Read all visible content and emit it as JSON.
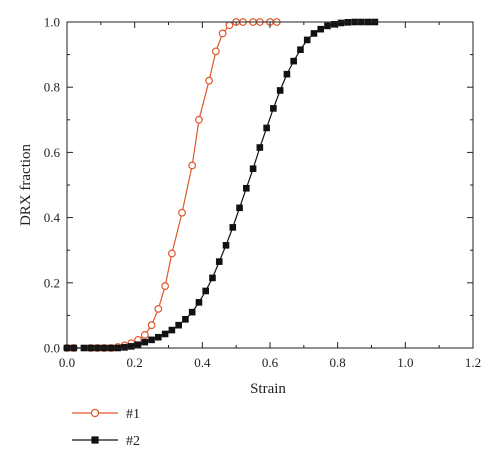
{
  "chart_data": {
    "type": "line",
    "xlabel": "Strain",
    "ylabel": "DRX fraction",
    "xlim": [
      0.0,
      1.2
    ],
    "ylim": [
      0.0,
      1.0
    ],
    "x_ticks": [
      "0.0",
      "0.2",
      "0.4",
      "0.6",
      "0.8",
      "1.0",
      "1.2"
    ],
    "y_ticks": [
      "0.0",
      "0.2",
      "0.4",
      "0.6",
      "0.8",
      "1.0"
    ],
    "grid": false,
    "legend_position": "bottom-left, below plot",
    "series": [
      {
        "name": "#1",
        "color": "#e0572c",
        "marker": "open-circle",
        "points": [
          [
            0.0,
            0.0
          ],
          [
            0.02,
            0.0
          ],
          [
            0.07,
            0.0
          ],
          [
            0.09,
            0.0
          ],
          [
            0.11,
            0.0
          ],
          [
            0.13,
            0.0
          ],
          [
            0.15,
            0.003
          ],
          [
            0.17,
            0.008
          ],
          [
            0.19,
            0.015
          ],
          [
            0.21,
            0.025
          ],
          [
            0.23,
            0.04
          ],
          [
            0.25,
            0.07
          ],
          [
            0.27,
            0.12
          ],
          [
            0.29,
            0.19
          ],
          [
            0.31,
            0.29
          ],
          [
            0.34,
            0.415
          ],
          [
            0.37,
            0.56
          ],
          [
            0.39,
            0.7
          ],
          [
            0.42,
            0.82
          ],
          [
            0.44,
            0.91
          ],
          [
            0.46,
            0.965
          ],
          [
            0.48,
            0.99
          ],
          [
            0.5,
            1.0
          ],
          [
            0.52,
            1.0
          ],
          [
            0.55,
            1.0
          ],
          [
            0.57,
            1.0
          ],
          [
            0.6,
            1.0
          ],
          [
            0.62,
            1.0
          ]
        ]
      },
      {
        "name": "#2",
        "color": "#111111",
        "marker": "filled-square",
        "points": [
          [
            0.0,
            0.0
          ],
          [
            0.02,
            0.0
          ],
          [
            0.05,
            0.0
          ],
          [
            0.07,
            0.0
          ],
          [
            0.09,
            0.0
          ],
          [
            0.11,
            0.0
          ],
          [
            0.13,
            0.0
          ],
          [
            0.15,
            0.0
          ],
          [
            0.17,
            0.002
          ],
          [
            0.19,
            0.005
          ],
          [
            0.21,
            0.01
          ],
          [
            0.23,
            0.018
          ],
          [
            0.25,
            0.025
          ],
          [
            0.27,
            0.033
          ],
          [
            0.29,
            0.043
          ],
          [
            0.31,
            0.055
          ],
          [
            0.33,
            0.07
          ],
          [
            0.35,
            0.088
          ],
          [
            0.37,
            0.11
          ],
          [
            0.39,
            0.14
          ],
          [
            0.41,
            0.175
          ],
          [
            0.43,
            0.215
          ],
          [
            0.45,
            0.265
          ],
          [
            0.47,
            0.315
          ],
          [
            0.49,
            0.37
          ],
          [
            0.51,
            0.43
          ],
          [
            0.53,
            0.49
          ],
          [
            0.55,
            0.55
          ],
          [
            0.57,
            0.615
          ],
          [
            0.59,
            0.675
          ],
          [
            0.61,
            0.735
          ],
          [
            0.63,
            0.79
          ],
          [
            0.65,
            0.84
          ],
          [
            0.67,
            0.88
          ],
          [
            0.69,
            0.915
          ],
          [
            0.71,
            0.945
          ],
          [
            0.73,
            0.965
          ],
          [
            0.75,
            0.978
          ],
          [
            0.77,
            0.988
          ],
          [
            0.79,
            0.993
          ],
          [
            0.81,
            0.997
          ],
          [
            0.83,
            0.999
          ],
          [
            0.85,
            1.0
          ],
          [
            0.87,
            1.0
          ],
          [
            0.89,
            1.0
          ],
          [
            0.91,
            1.0
          ]
        ]
      }
    ]
  }
}
